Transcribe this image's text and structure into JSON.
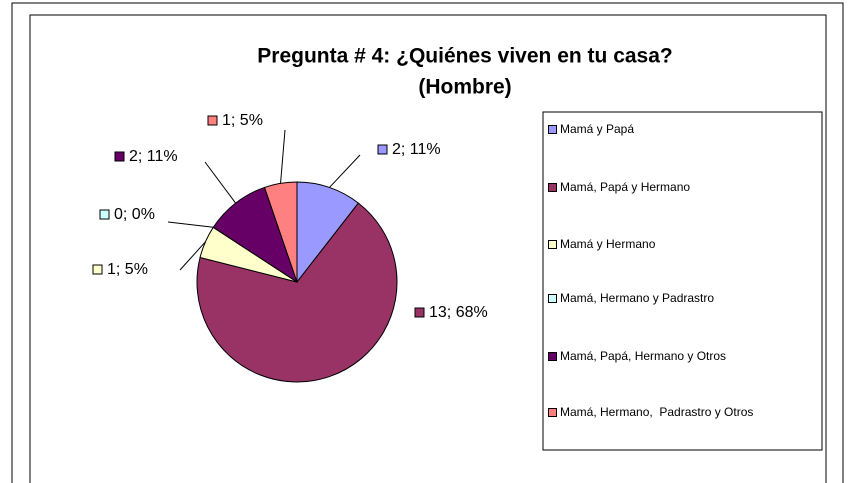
{
  "chart_data": {
    "type": "pie",
    "title": "Pregunta # 4: ¿Quiénes viven en tu casa?",
    "subtitle": "(Hombre)",
    "categories": [
      "Mamá y Papá",
      "Mamá, Papá y Hermano",
      "Mamá y Hermano",
      "Mamá, Hermano y Padrastro",
      "Mamá, Papá, Hermano y Otros",
      "Mamá, Hermano,  Padrastro y Otros"
    ],
    "values": [
      2,
      13,
      1,
      0,
      2,
      1
    ],
    "value_labels": [
      "2; 11%",
      "13; 68%",
      "1; 5%",
      "0; 0%",
      "2; 11%",
      "1; 5%"
    ],
    "colors": [
      "#9999ff",
      "#993366",
      "#ffffcc",
      "#ccffff",
      "#660066",
      "#ff8080"
    ],
    "legend": "right"
  }
}
